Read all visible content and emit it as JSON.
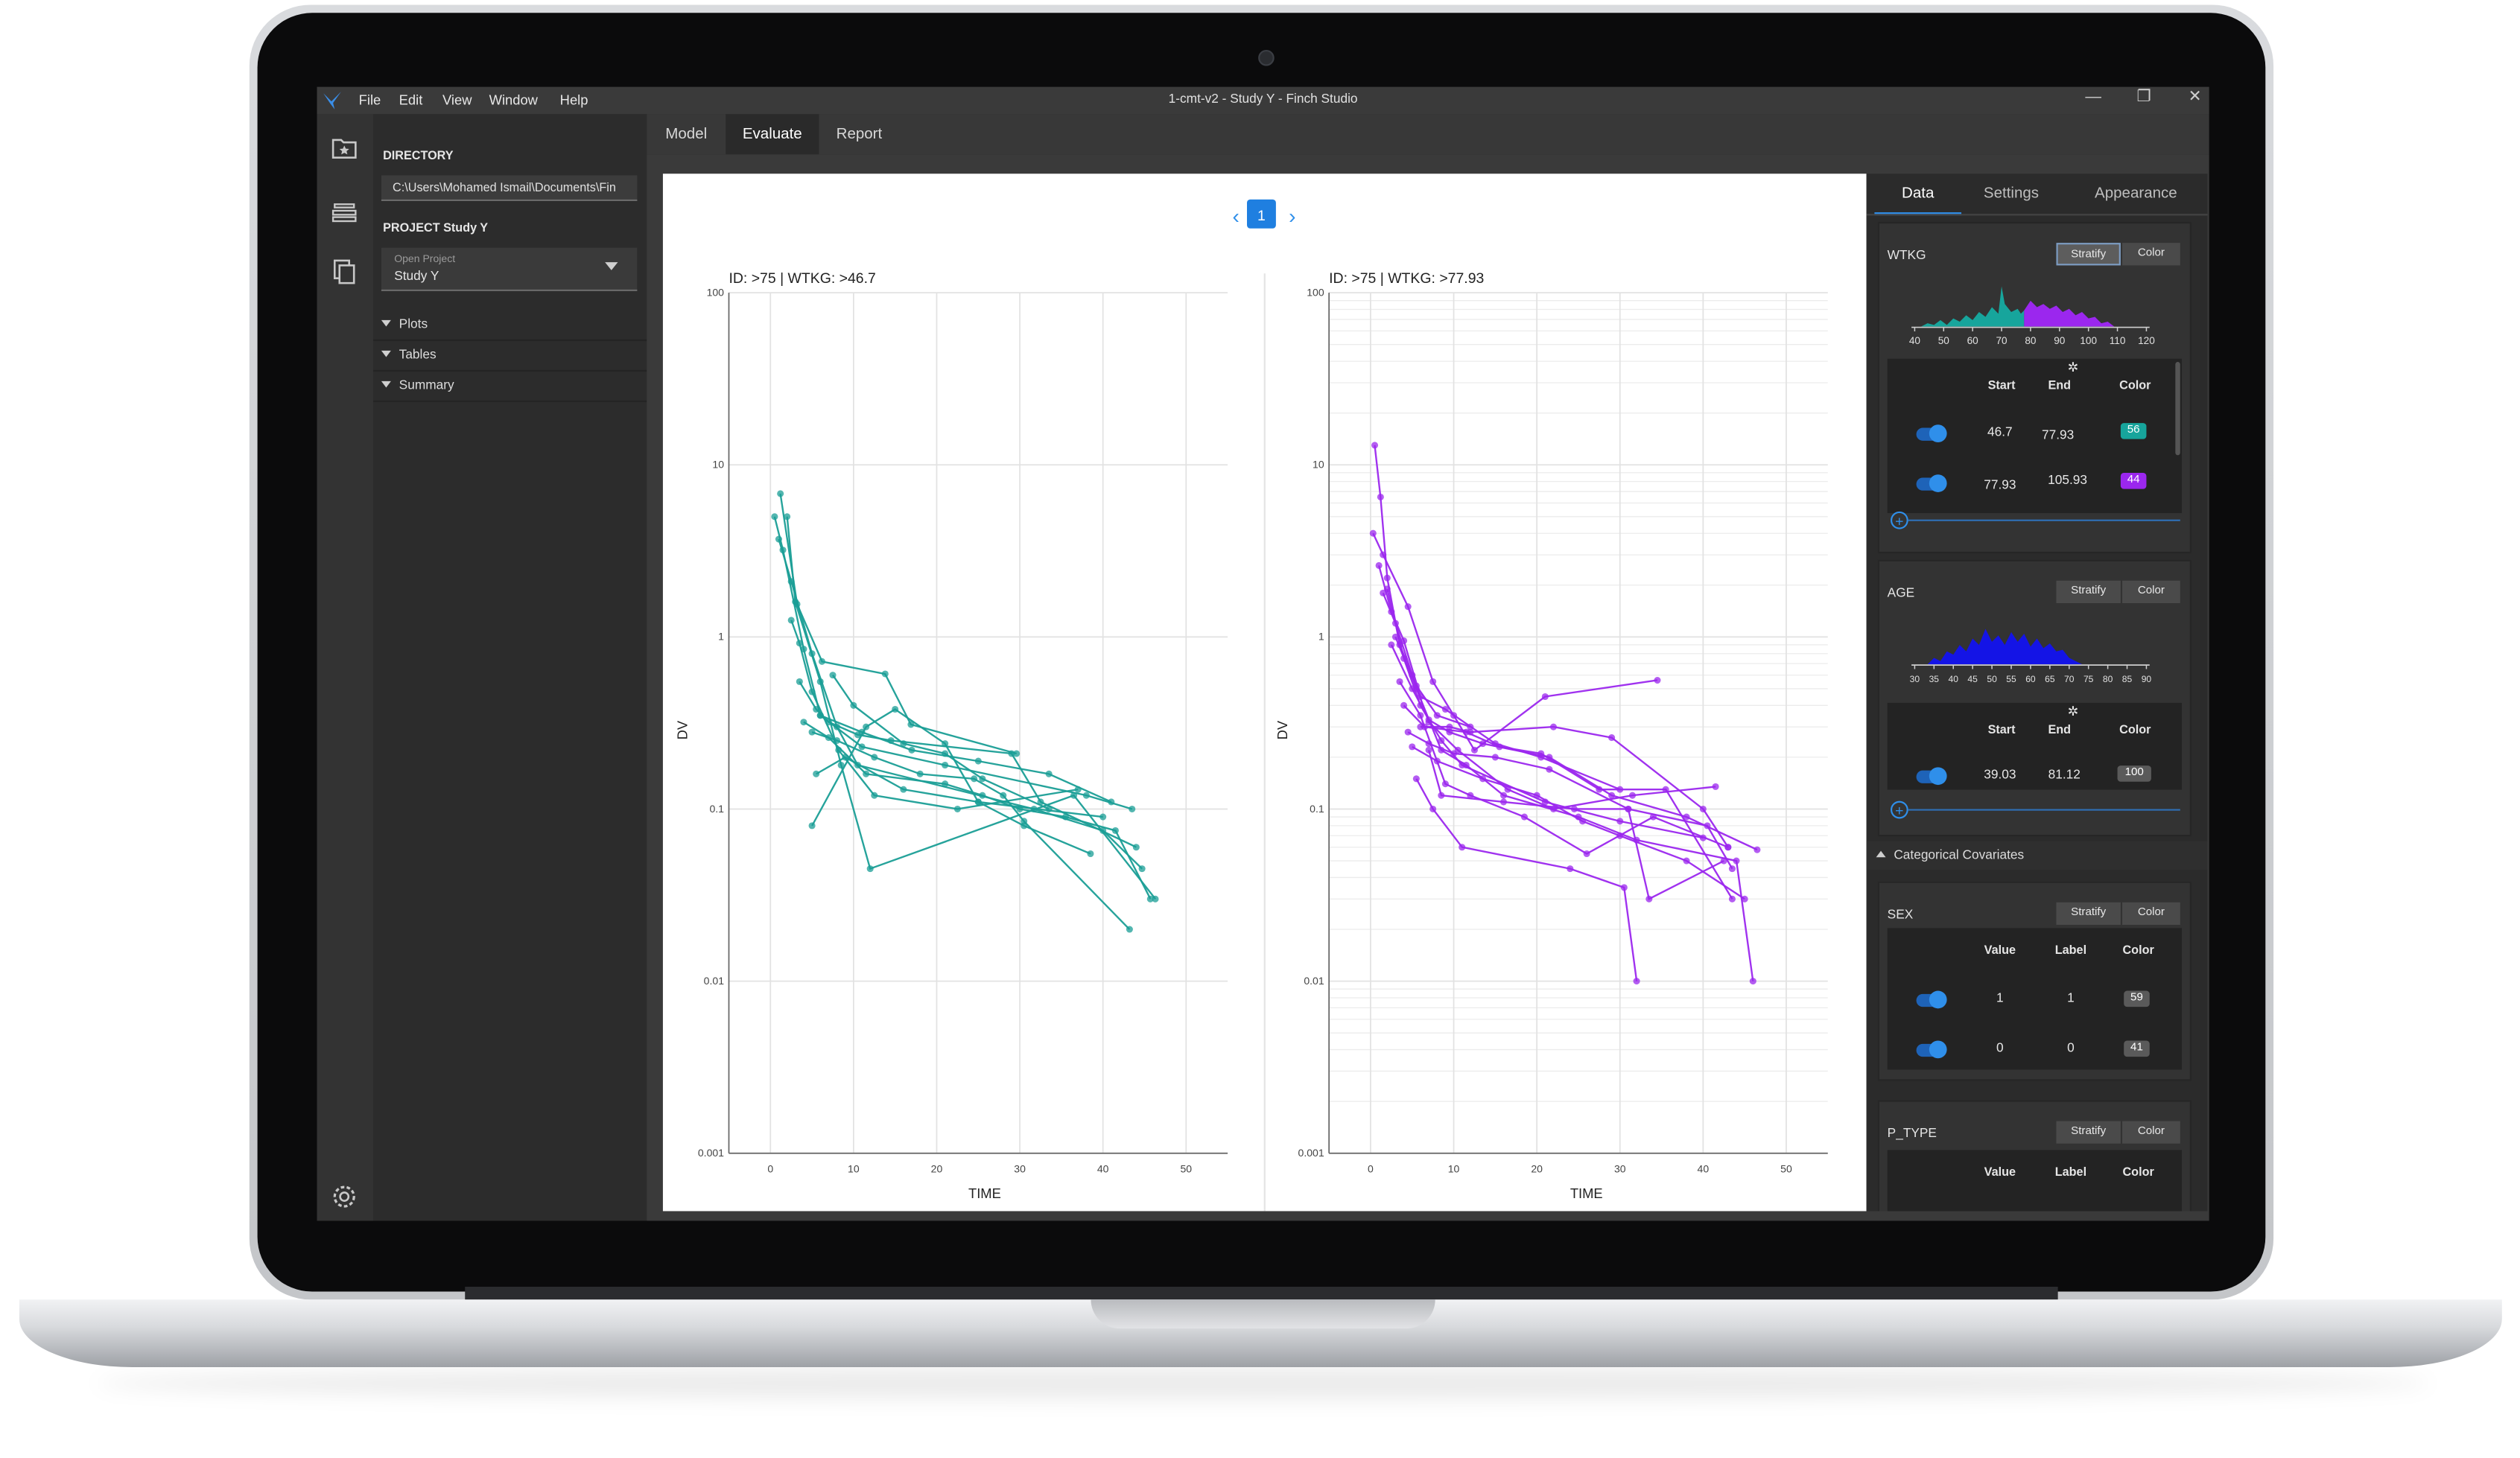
{
  "app": {
    "menu": [
      "File",
      "Edit",
      "View",
      "Window",
      "Help"
    ],
    "window_title": "1-cmt-v2 - Study Y - Finch Studio",
    "controls": {
      "minimize": "—",
      "restore": "❐",
      "close": "✕"
    }
  },
  "sidebar_icons": [
    "folder-star-icon",
    "layers-icon",
    "copy-icon",
    "settings-gear-icon"
  ],
  "directory": {
    "heading": "DIRECTORY",
    "path": "C:\\Users\\Mohamed Ismail\\Documents\\Fin",
    "project_heading": "PROJECT Study Y",
    "open_project_label": "Open Project",
    "open_project_value": "Study Y",
    "tree": [
      "Plots",
      "Tables",
      "Summary"
    ]
  },
  "tabs": [
    {
      "label": "Model",
      "active": false
    },
    {
      "label": "Evaluate",
      "active": true
    },
    {
      "label": "Report",
      "active": false
    }
  ],
  "pager": {
    "current": "1"
  },
  "plots": [
    {
      "title": "ID: >75 | WTKG: >46.7",
      "color": "#1a9e96"
    },
    {
      "title": "ID: >75 | WTKG: >77.93",
      "color": "#9b27ee"
    }
  ],
  "axes": {
    "xlabel": "TIME",
    "ylabel": "DV",
    "xticks": [
      "0",
      "10",
      "20",
      "30",
      "40",
      "50"
    ],
    "yticks": [
      "0.001",
      "0.01",
      "0.1",
      "1",
      "10",
      "100"
    ]
  },
  "chart_data": [
    {
      "type": "line",
      "title": "ID: >75 | WTKG: >46.7",
      "xlabel": "TIME",
      "ylabel": "DV",
      "y_scale": "log",
      "xlim": [
        -5,
        55
      ],
      "ylim": [
        0.001,
        100
      ],
      "color": "#1a9e96",
      "series": [
        {
          "x": [
            1.2,
            3.2,
            6.2,
            13.8,
            16.9,
            29.6
          ],
          "y": [
            6.8,
            1.55,
            0.72,
            0.61,
            0.31,
            0.21
          ]
        },
        {
          "x": [
            0.5,
            1.5,
            4.0,
            6.0,
            11.0,
            21.0,
            38.0,
            43.5
          ],
          "y": [
            5.0,
            3.2,
            0.85,
            0.35,
            0.23,
            0.18,
            0.12,
            0.1
          ]
        },
        {
          "x": [
            1.0,
            2.5,
            5.0,
            8.0,
            10.5,
            31.7,
            40.0,
            44.7
          ],
          "y": [
            3.7,
            2.1,
            0.8,
            0.3,
            0.18,
            0.1,
            0.075,
            0.045
          ]
        },
        {
          "x": [
            2.0,
            3.0,
            6.0,
            8.5,
            12.0,
            36.5,
            46.3
          ],
          "y": [
            5.0,
            1.6,
            0.55,
            0.18,
            0.045,
            0.12,
            0.03
          ]
        },
        {
          "x": [
            2.5,
            3.5,
            5.0,
            8.2,
            12.5,
            22.5,
            37.0
          ],
          "y": [
            1.25,
            0.92,
            0.48,
            0.22,
            0.12,
            0.1,
            0.13
          ]
        },
        {
          "x": [
            3.5,
            5.5,
            7.0,
            10.5,
            14.5,
            29.0,
            32.5,
            44.0
          ],
          "y": [
            0.55,
            0.38,
            0.32,
            0.27,
            0.25,
            0.21,
            0.11,
            0.06
          ]
        },
        {
          "x": [
            4.0,
            7.0,
            11.5,
            21.0,
            25.5,
            30.0,
            35.5,
            41.5,
            45.7
          ],
          "y": [
            0.32,
            0.26,
            0.16,
            0.14,
            0.12,
            0.1,
            0.09,
            0.075,
            0.03
          ]
        },
        {
          "x": [
            5.0,
            8.0,
            12.5,
            18.0,
            24.5,
            28.0,
            30.5,
            43.2
          ],
          "y": [
            0.28,
            0.25,
            0.2,
            0.16,
            0.15,
            0.12,
            0.085,
            0.02
          ]
        },
        {
          "x": [
            5.5,
            9.0,
            16.0,
            25.0,
            30.5,
            38.5
          ],
          "y": [
            0.16,
            0.2,
            0.13,
            0.11,
            0.08,
            0.055
          ]
        },
        {
          "x": [
            6.0,
            11.0,
            17.0,
            25.0,
            33.5,
            41.0
          ],
          "y": [
            0.35,
            0.28,
            0.22,
            0.19,
            0.16,
            0.11
          ]
        },
        {
          "x": [
            5.0,
            11.5,
            15.0,
            21.0,
            25.0,
            40.0
          ],
          "y": [
            0.08,
            0.3,
            0.38,
            0.24,
            0.11,
            0.09
          ]
        },
        {
          "x": [
            7.5,
            10.0,
            16.0,
            21.0,
            25.5,
            33.5
          ],
          "y": [
            0.6,
            0.4,
            0.24,
            0.21,
            0.15,
            0.1
          ]
        }
      ]
    },
    {
      "type": "line",
      "title": "ID: >75 | WTKG: >77.93",
      "xlabel": "TIME",
      "ylabel": "DV",
      "y_scale": "log",
      "xlim": [
        -5,
        55
      ],
      "ylim": [
        0.001,
        100
      ],
      "color": "#9b27ee",
      "series": [
        {
          "x": [
            0.5,
            1.2,
            2.0,
            3.5,
            5.5,
            8.0,
            12.0
          ],
          "y": [
            13.0,
            6.5,
            2.2,
            0.9,
            0.52,
            0.35,
            0.3
          ]
        },
        {
          "x": [
            0.3,
            1.5,
            4.5,
            7.5,
            10.0,
            12.5,
            21.0,
            34.5
          ],
          "y": [
            4.0,
            3.0,
            1.5,
            0.55,
            0.35,
            0.22,
            0.45,
            0.56
          ]
        },
        {
          "x": [
            1.0,
            2.5,
            4.0,
            6.0,
            9.0,
            15.0,
            20.5,
            30.0
          ],
          "y": [
            2.6,
            1.4,
            0.95,
            0.45,
            0.38,
            0.24,
            0.2,
            0.13
          ]
        },
        {
          "x": [
            1.5,
            3.0,
            5.0,
            7.0,
            10.5,
            16.5,
            22.0,
            31.5,
            41.5
          ],
          "y": [
            1.8,
            1.2,
            0.6,
            0.32,
            0.22,
            0.13,
            0.1,
            0.12,
            0.135
          ]
        },
        {
          "x": [
            2.0,
            4.0,
            6.0,
            8.5,
            11.0,
            21.0,
            30.0,
            40.0
          ],
          "y": [
            1.9,
            0.75,
            0.4,
            0.25,
            0.18,
            0.11,
            0.085,
            0.068
          ]
        },
        {
          "x": [
            2.5,
            5.0,
            7.0,
            9.5,
            13.5,
            21.5,
            29.0,
            38.0,
            46.5
          ],
          "y": [
            0.9,
            0.5,
            0.33,
            0.28,
            0.24,
            0.2,
            0.12,
            0.09,
            0.058
          ]
        },
        {
          "x": [
            3.0,
            5.5,
            8.5,
            11.5,
            16.0,
            25.0,
            32.0,
            44.0,
            46.0
          ],
          "y": [
            1.0,
            0.5,
            0.22,
            0.18,
            0.12,
            0.09,
            0.066,
            0.05,
            0.01
          ]
        },
        {
          "x": [
            3.5,
            6.0,
            9.0,
            12.0,
            18.5,
            26.0,
            34.0,
            43.0
          ],
          "y": [
            0.55,
            0.35,
            0.14,
            0.12,
            0.09,
            0.055,
            0.09,
            0.06
          ]
        },
        {
          "x": [
            4.0,
            6.5,
            11.5,
            15.5,
            20.5,
            27.5,
            35.5,
            43.5
          ],
          "y": [
            0.4,
            0.3,
            0.28,
            0.23,
            0.21,
            0.13,
            0.13,
            0.03
          ]
        },
        {
          "x": [
            4.5,
            7.0,
            10.0,
            15.0,
            21.5,
            31.0,
            33.5,
            42.5
          ],
          "y": [
            0.28,
            0.24,
            0.21,
            0.2,
            0.17,
            0.1,
            0.03,
            0.05
          ]
        },
        {
          "x": [
            5.0,
            8.0,
            13.5,
            20.0,
            25.5,
            30.0,
            38.0,
            45.0
          ],
          "y": [
            0.23,
            0.19,
            0.15,
            0.12,
            0.085,
            0.07,
            0.05,
            0.03
          ]
        },
        {
          "x": [
            5.5,
            7.5,
            11.0,
            24.0,
            30.5,
            32.0
          ],
          "y": [
            0.15,
            0.1,
            0.06,
            0.045,
            0.035,
            0.01
          ]
        },
        {
          "x": [
            6.0,
            9.5,
            12.0,
            22.0,
            29.0,
            40.0,
            43.0
          ],
          "y": [
            0.3,
            0.3,
            0.28,
            0.3,
            0.26,
            0.1,
            0.06
          ]
        },
        {
          "x": [
            7.0,
            8.5,
            16.0,
            24.5,
            31.0,
            40.5,
            43.5
          ],
          "y": [
            0.22,
            0.12,
            0.11,
            0.1,
            0.1,
            0.08,
            0.045
          ]
        }
      ]
    }
  ],
  "panel": {
    "tabs": [
      "Data",
      "Settings",
      "Appearance"
    ],
    "stratify_label": "Stratify",
    "color_label": "Color",
    "wtkg": {
      "title": "WTKG",
      "hist_ticks": [
        "40",
        "50",
        "60",
        "70",
        "80",
        "90",
        "100",
        "110",
        "120"
      ],
      "headers": {
        "start": "Start",
        "end": "End",
        "color": "Color"
      },
      "rows": [
        {
          "start": "46.7",
          "end": "77.93",
          "count": "56",
          "color": "#17a59c"
        },
        {
          "start": "77.93",
          "end": "105.93",
          "count": "44",
          "color": "#9b27ee"
        }
      ]
    },
    "age": {
      "title": "AGE",
      "hist_ticks": [
        "30",
        "35",
        "40",
        "45",
        "50",
        "55",
        "60",
        "65",
        "70",
        "75",
        "80",
        "85",
        "90"
      ],
      "headers": {
        "start": "Start",
        "end": "End",
        "color": "Color"
      },
      "rows": [
        {
          "start": "39.03",
          "end": "81.12",
          "count": "100",
          "color": "#5a5a5a"
        }
      ]
    },
    "categorical_heading": "Categorical Covariates",
    "sex": {
      "title": "SEX",
      "headers": {
        "value": "Value",
        "label": "Label",
        "color": "Color"
      },
      "rows": [
        {
          "value": "1",
          "label": "1",
          "count": "59"
        },
        {
          "value": "0",
          "label": "0",
          "count": "41"
        }
      ]
    },
    "p_type": {
      "title": "P_TYPE",
      "headers": {
        "value": "Value",
        "label": "Label",
        "color": "Color"
      }
    }
  }
}
